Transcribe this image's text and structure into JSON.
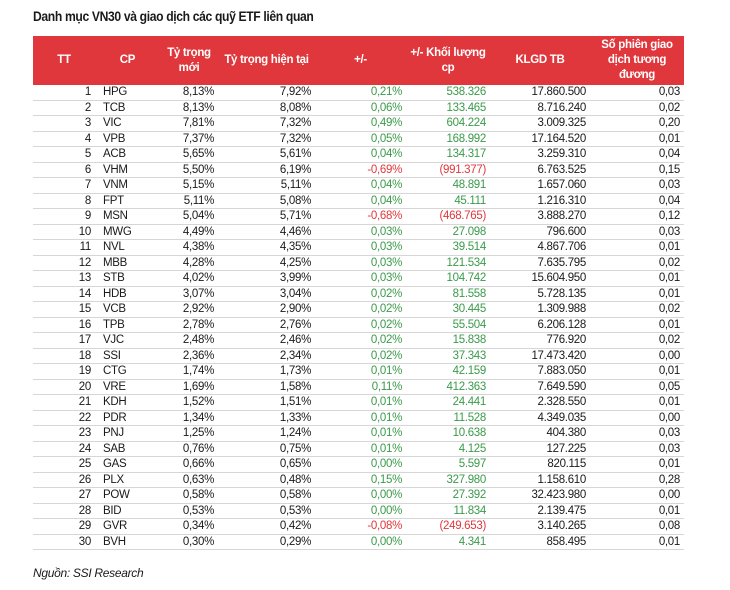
{
  "title": "Danh mục VN30 và giao dịch các quỹ ETF liên quan",
  "colors": {
    "header_bg": "#e0373c",
    "positive": "#3a9a4a",
    "negative": "#e0373c"
  },
  "table": {
    "headers": [
      "TT",
      "CP",
      "Tỷ trọng mới",
      "Tỷ trọng hiện tại",
      "+/-",
      "+/- Khối lượng cp",
      "KLGD TB",
      "Số phiên giao dịch tương đương"
    ],
    "rows": [
      [
        "1",
        "HPG",
        "8,13%",
        "7,92%",
        "0,21%",
        "538.326",
        "17.860.500",
        "0,03"
      ],
      [
        "2",
        "TCB",
        "8,13%",
        "8,08%",
        "0,06%",
        "133.465",
        "8.716.240",
        "0,02"
      ],
      [
        "3",
        "VIC",
        "7,81%",
        "7,32%",
        "0,49%",
        "604.224",
        "3.009.325",
        "0,20"
      ],
      [
        "4",
        "VPB",
        "7,37%",
        "7,32%",
        "0,05%",
        "168.992",
        "17.164.520",
        "0,01"
      ],
      [
        "5",
        "ACB",
        "5,65%",
        "5,61%",
        "0,04%",
        "134.317",
        "3.259.310",
        "0,04"
      ],
      [
        "6",
        "VHM",
        "5,50%",
        "6,19%",
        "-0,69%",
        "(991.377)",
        "6.763.525",
        "0,15"
      ],
      [
        "7",
        "VNM",
        "5,15%",
        "5,11%",
        "0,04%",
        "48.891",
        "1.657.060",
        "0,03"
      ],
      [
        "8",
        "FPT",
        "5,11%",
        "5,08%",
        "0,04%",
        "45.111",
        "1.216.310",
        "0,04"
      ],
      [
        "9",
        "MSN",
        "5,04%",
        "5,71%",
        "-0,68%",
        "(468.765)",
        "3.888.270",
        "0,12"
      ],
      [
        "10",
        "MWG",
        "4,49%",
        "4,46%",
        "0,03%",
        "27.098",
        "796.600",
        "0,03"
      ],
      [
        "11",
        "NVL",
        "4,38%",
        "4,35%",
        "0,03%",
        "39.514",
        "4.867.706",
        "0,01"
      ],
      [
        "12",
        "MBB",
        "4,28%",
        "4,25%",
        "0,03%",
        "121.534",
        "7.635.795",
        "0,02"
      ],
      [
        "13",
        "STB",
        "4,02%",
        "3,99%",
        "0,03%",
        "104.742",
        "15.604.950",
        "0,01"
      ],
      [
        "14",
        "HDB",
        "3,07%",
        "3,04%",
        "0,02%",
        "81.558",
        "5.728.135",
        "0,01"
      ],
      [
        "15",
        "VCB",
        "2,92%",
        "2,90%",
        "0,02%",
        "30.445",
        "1.309.988",
        "0,02"
      ],
      [
        "16",
        "TPB",
        "2,78%",
        "2,76%",
        "0,02%",
        "55.504",
        "6.206.128",
        "0,01"
      ],
      [
        "17",
        "VJC",
        "2,48%",
        "2,46%",
        "0,02%",
        "15.838",
        "776.920",
        "0,02"
      ],
      [
        "18",
        "SSI",
        "2,36%",
        "2,34%",
        "0,02%",
        "37.343",
        "17.473.420",
        "0,00"
      ],
      [
        "19",
        "CTG",
        "1,74%",
        "1,73%",
        "0,01%",
        "42.159",
        "7.883.050",
        "0,01"
      ],
      [
        "20",
        "VRE",
        "1,69%",
        "1,58%",
        "0,11%",
        "412.363",
        "7.649.590",
        "0,05"
      ],
      [
        "21",
        "KDH",
        "1,52%",
        "1,51%",
        "0,01%",
        "24.441",
        "2.328.550",
        "0,01"
      ],
      [
        "22",
        "PDR",
        "1,34%",
        "1,33%",
        "0,01%",
        "11.528",
        "4.349.035",
        "0,00"
      ],
      [
        "23",
        "PNJ",
        "1,25%",
        "1,24%",
        "0,01%",
        "10.638",
        "404.380",
        "0,03"
      ],
      [
        "24",
        "SAB",
        "0,76%",
        "0,75%",
        "0,01%",
        "4.125",
        "127.225",
        "0,03"
      ],
      [
        "25",
        "GAS",
        "0,66%",
        "0,65%",
        "0,00%",
        "5.597",
        "820.115",
        "0,01"
      ],
      [
        "26",
        "PLX",
        "0,63%",
        "0,48%",
        "0,15%",
        "327.980",
        "1.158.610",
        "0,28"
      ],
      [
        "27",
        "POW",
        "0,58%",
        "0,58%",
        "0,00%",
        "27.392",
        "32.423.980",
        "0,00"
      ],
      [
        "28",
        "BID",
        "0,53%",
        "0,53%",
        "0,00%",
        "11.834",
        "2.139.475",
        "0,01"
      ],
      [
        "29",
        "GVR",
        "0,34%",
        "0,42%",
        "-0,08%",
        "(249.653)",
        "3.140.265",
        "0,08"
      ],
      [
        "30",
        "BVH",
        "0,30%",
        "0,29%",
        "0,00%",
        "4.341",
        "858.495",
        "0,01"
      ]
    ]
  },
  "source": "Nguồn: SSI Research"
}
